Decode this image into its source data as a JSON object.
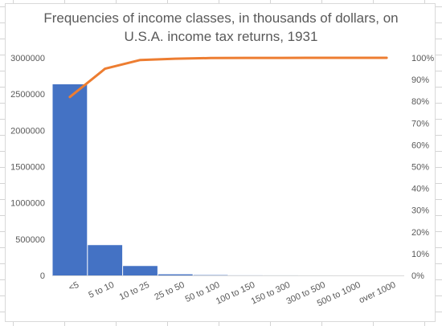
{
  "chart_data": {
    "type": "bar",
    "title_lines": [
      "Frequencies of income classes, in thousands of dollars, on",
      "U.S.A. income tax returns, 1931"
    ],
    "categories": [
      "<5",
      "5 to 10",
      "10 to 25",
      "25 to 50",
      "50 to 100",
      "100 to 150",
      "150 to 300",
      "300 to 500",
      "500 to 1000",
      "over 1000"
    ],
    "series": [
      {
        "type": "bar",
        "values": [
          2635000,
          418000,
          130000,
          15000,
          4500,
          1000,
          600,
          150,
          80,
          30
        ],
        "color": "#4472c4"
      },
      {
        "type": "line",
        "axis": "secondary",
        "values": [
          82,
          95,
          99,
          99.6,
          99.9,
          99.95,
          99.98,
          99.99,
          100,
          100
        ],
        "color": "#ed7d31"
      }
    ],
    "y_ticks": [
      "0",
      "500000",
      "1000000",
      "1500000",
      "2000000",
      "2500000",
      "3000000"
    ],
    "y2_ticks": [
      "0%",
      "10%",
      "20%",
      "30%",
      "40%",
      "50%",
      "60%",
      "70%",
      "80%",
      "90%",
      "100%"
    ],
    "ylim": [
      0,
      3000000
    ],
    "y2lim": [
      0,
      100
    ],
    "grid": false,
    "legend": "none"
  }
}
